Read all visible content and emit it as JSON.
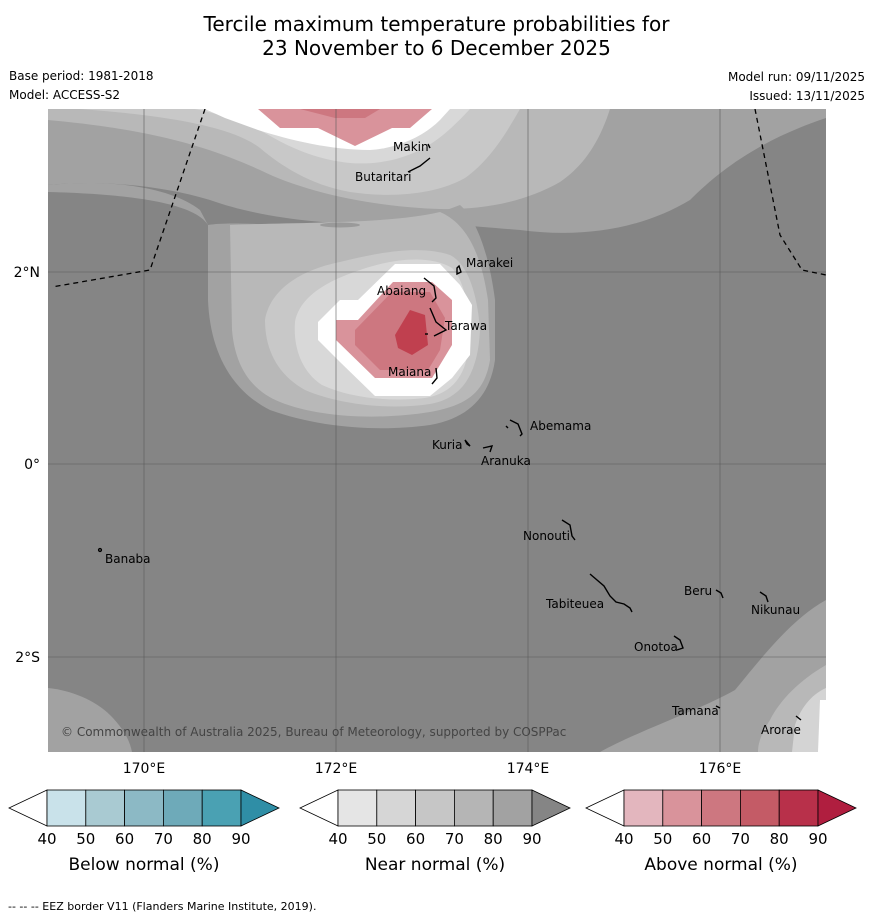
{
  "title": {
    "line1": "Tercile maximum temperature probabilities for",
    "line2": "23 November to 6 December 2025"
  },
  "meta": {
    "base_period": "Base period: 1981-2018",
    "model": "Model: ACCESS-S2",
    "model_run": "Model run: 09/11/2025",
    "issued": "Issued: 13/11/2025"
  },
  "axes": {
    "lat_labels": [
      "2°N",
      "0°",
      "2°S"
    ],
    "lon_labels": [
      "170°E",
      "172°E",
      "174°E",
      "176°E"
    ]
  },
  "places": [
    {
      "name": "Makin"
    },
    {
      "name": "Butaritari"
    },
    {
      "name": "Marakei"
    },
    {
      "name": "Abaiang"
    },
    {
      "name": "Tarawa"
    },
    {
      "name": "Maiana"
    },
    {
      "name": "Abemama"
    },
    {
      "name": "Kuria"
    },
    {
      "name": "Aranuka"
    },
    {
      "name": "Nonouti"
    },
    {
      "name": "Banaba"
    },
    {
      "name": "Beru"
    },
    {
      "name": "Tabiteuea"
    },
    {
      "name": "Nikunau"
    },
    {
      "name": "Onotoa"
    },
    {
      "name": "Tamana"
    },
    {
      "name": "Arorae"
    }
  ],
  "copyright": "© Commonwealth of Australia 2025, Bureau of Meteorology, supported by COSPPac",
  "colorbars": [
    {
      "label": "Below normal (%)",
      "ticks": [
        "40",
        "50",
        "60",
        "70",
        "80",
        "90"
      ],
      "colors": [
        "#ffffff",
        "#c9e2ea",
        "#a9cad2",
        "#8cb9c5",
        "#6eaab9",
        "#4aa1b3",
        "#2f8ea6"
      ]
    },
    {
      "label": "Near normal (%)",
      "ticks": [
        "40",
        "50",
        "60",
        "70",
        "80",
        "90"
      ],
      "colors": [
        "#ffffff",
        "#e5e5e5",
        "#d6d6d6",
        "#c6c6c6",
        "#b5b5b5",
        "#a2a2a2",
        "#858585"
      ]
    },
    {
      "label": "Above normal (%)",
      "ticks": [
        "40",
        "50",
        "60",
        "70",
        "80",
        "90"
      ],
      "colors": [
        "#ffffff",
        "#e3b6be",
        "#d9939b",
        "#cd7780",
        "#c45b66",
        "#b8304a",
        "#b01e3f"
      ]
    }
  ],
  "footer": "--  --  -- EEZ border V11 (Flanders Marine Institute, 2019)."
}
